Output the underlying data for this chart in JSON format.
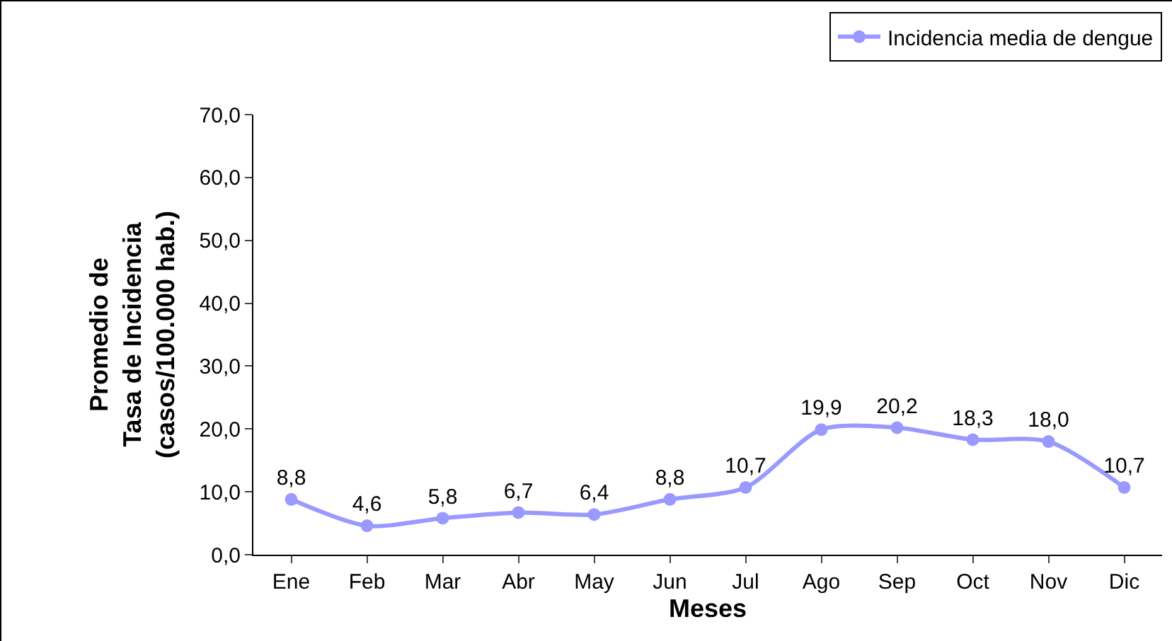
{
  "chart_data": {
    "type": "line",
    "xlabel": "Meses",
    "ylabel": "Promedio de\nTasa de Incidencia\n(casos/100.000 hab.)",
    "categories": [
      "Ene",
      "Feb",
      "Mar",
      "Abr",
      "May",
      "Jun",
      "Jul",
      "Ago",
      "Sep",
      "Oct",
      "Nov",
      "Dic"
    ],
    "series": [
      {
        "name": "Incidencia media de dengue",
        "color": "#9999ff",
        "values": [
          8.8,
          4.6,
          5.8,
          6.7,
          6.4,
          8.8,
          10.7,
          19.9,
          20.2,
          18.3,
          18.0,
          10.7
        ],
        "value_labels": [
          "8,8",
          "4,6",
          "5,8",
          "6,7",
          "6,4",
          "8,8",
          "10,7",
          "19,9",
          "20,2",
          "18,3",
          "18,0",
          "10,7"
        ]
      }
    ],
    "ylim": [
      0,
      70
    ],
    "yticks": [
      {
        "value": 0,
        "label": "0,0"
      },
      {
        "value": 10,
        "label": "10,0"
      },
      {
        "value": 20,
        "label": "20,0"
      },
      {
        "value": 30,
        "label": "30,0"
      },
      {
        "value": 40,
        "label": "40,0"
      },
      {
        "value": 50,
        "label": "50,0"
      },
      {
        "value": 60,
        "label": "60,0"
      },
      {
        "value": 70,
        "label": "70,0"
      }
    ],
    "grid": false,
    "legend": "top right",
    "marker": "circle",
    "line_style": "solid"
  }
}
